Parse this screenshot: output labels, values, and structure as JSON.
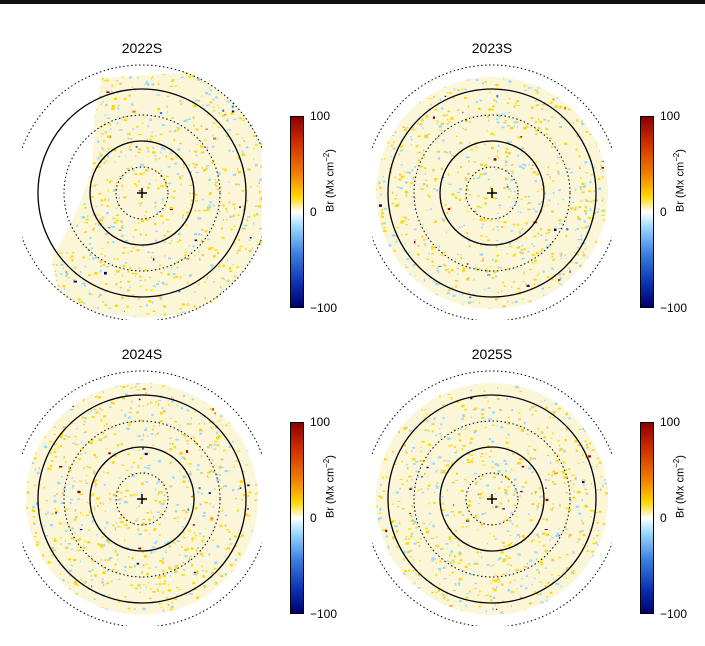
{
  "panels": [
    {
      "title": "2022S",
      "partial": true
    },
    {
      "title": "2023S",
      "partial": false
    },
    {
      "title": "2024S",
      "partial": false
    },
    {
      "title": "2025S",
      "partial": false
    }
  ],
  "colorbar": {
    "max_label": "100",
    "mid_label": "0",
    "min_label": "−100",
    "axis_label_main": "Br (Mx cm",
    "axis_label_sup": "−2",
    "axis_label_end": ")"
  },
  "colors": {
    "positive_strong": "#8b0000",
    "positive": "#f08000",
    "weak_positive": "#ffd700",
    "zero": "#ffffff",
    "weak_negative": "#9ad8ff",
    "negative_strong": "#00006a"
  }
}
